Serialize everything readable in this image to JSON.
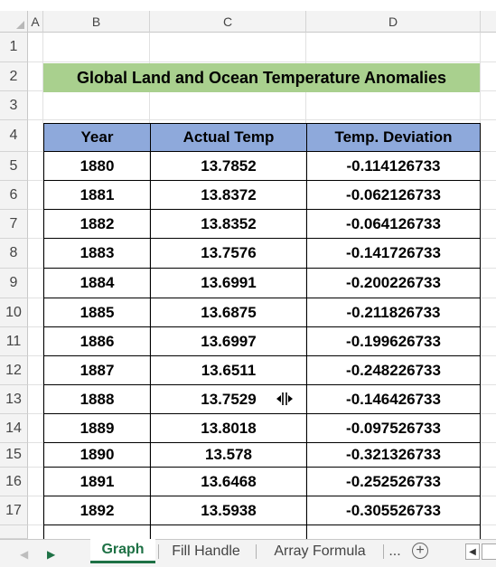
{
  "columns": [
    "A",
    "B",
    "C",
    "D"
  ],
  "rows": [
    "1",
    "2",
    "3",
    "4",
    "5",
    "6",
    "7",
    "8",
    "9",
    "10",
    "11",
    "12",
    "13",
    "14",
    "15",
    "16",
    "17"
  ],
  "title": "Global Land and Ocean Temperature Anomalies",
  "table": {
    "headers": [
      "Year",
      "Actual Temp",
      "Temp. Deviation"
    ],
    "rows": [
      [
        "1880",
        "13.7852",
        "-0.114126733"
      ],
      [
        "1881",
        "13.8372",
        "-0.062126733"
      ],
      [
        "1882",
        "13.8352",
        "-0.064126733"
      ],
      [
        "1883",
        "13.7576",
        "-0.141726733"
      ],
      [
        "1884",
        "13.6991",
        "-0.200226733"
      ],
      [
        "1885",
        "13.6875",
        "-0.211826733"
      ],
      [
        "1886",
        "13.6997",
        "-0.199626733"
      ],
      [
        "1887",
        "13.6511",
        "-0.248226733"
      ],
      [
        "1888",
        "13.7529",
        "-0.146426733"
      ],
      [
        "1889",
        "13.8018",
        "-0.097526733"
      ],
      [
        "1890",
        "13.578",
        "-0.321326733"
      ],
      [
        "1891",
        "13.6468",
        "-0.252526733"
      ],
      [
        "1892",
        "13.5938",
        "-0.305526733"
      ]
    ]
  },
  "sheets": {
    "tabs": [
      "Graph",
      "Fill Handle",
      "Array Formula"
    ],
    "active": "Graph",
    "more": "..."
  },
  "colors": {
    "title_fill": "#a9d08e",
    "header_fill": "#8ea9db",
    "active_tab": "#1e7145"
  },
  "icons": [
    "corner-triangle-icon",
    "prev-sheet-icon",
    "next-sheet-icon",
    "add-sheet-icon",
    "scroll-left-icon",
    "move-cursor-icon"
  ]
}
